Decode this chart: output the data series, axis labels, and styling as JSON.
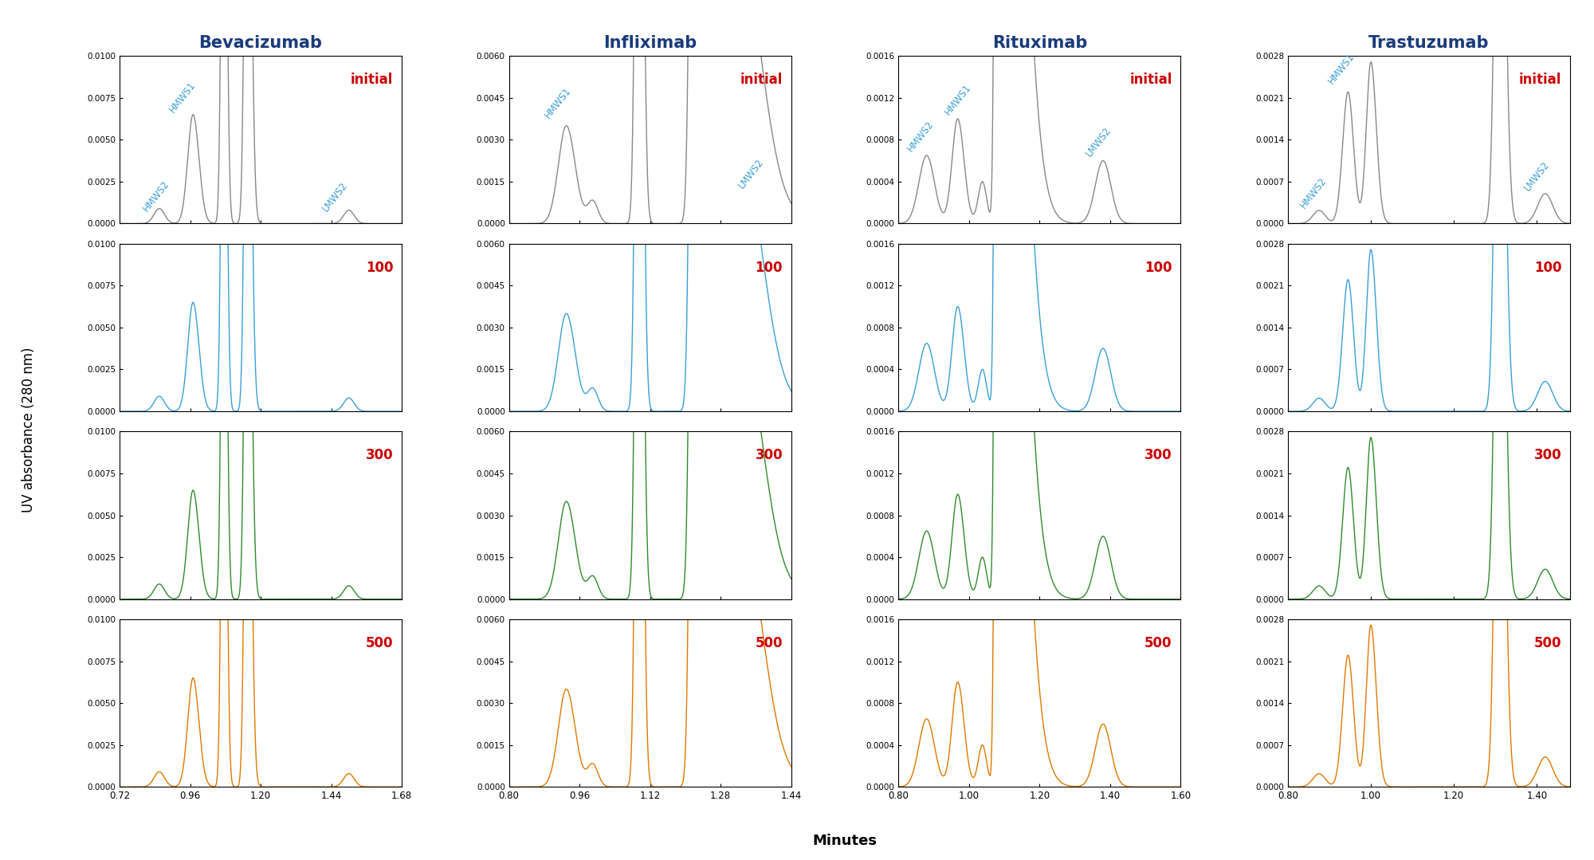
{
  "drugs": [
    "Bevacizumab",
    "Infliximab",
    "Rituximab",
    "Trastuzumab"
  ],
  "injection_labels": [
    "initial",
    "100",
    "300",
    "500"
  ],
  "colors": [
    "#888888",
    "#3a9fd6",
    "#2e8b2e",
    "#e07800"
  ],
  "title_color": "#1a3a7a",
  "label_color": "#cc0000",
  "annotation_color": "#3a9fd6",
  "bev_xlim": [
    0.72,
    1.68
  ],
  "bev_xticks": [
    0.72,
    0.96,
    1.2,
    1.44,
    1.68
  ],
  "bev_ylim": [
    0.0,
    0.01
  ],
  "bev_yticks": [
    0.0,
    0.0025,
    0.005,
    0.0075,
    0.01
  ],
  "inf_xlim": [
    0.8,
    1.44
  ],
  "inf_xticks": [
    0.8,
    0.96,
    1.12,
    1.28,
    1.44
  ],
  "inf_ylim": [
    0.0,
    0.006
  ],
  "inf_yticks": [
    0.0,
    0.0015,
    0.003,
    0.0045,
    0.006
  ],
  "rit_xlim": [
    0.8,
    1.6
  ],
  "rit_xticks": [
    0.8,
    1.0,
    1.2,
    1.4,
    1.6
  ],
  "rit_ylim": [
    0.0,
    0.0016
  ],
  "rit_yticks": [
    0.0,
    0.0004,
    0.0008,
    0.0012,
    0.0016
  ],
  "tras_xlim": [
    0.8,
    1.48
  ],
  "tras_xticks": [
    0.8,
    1.0,
    1.2,
    1.4
  ],
  "tras_ylim": [
    0.0,
    0.0028
  ],
  "tras_yticks": [
    0.0,
    0.0007,
    0.0014,
    0.0021,
    0.0028
  ],
  "ylabel": "UV absorbance (280 nm)",
  "xlabel": "Minutes"
}
